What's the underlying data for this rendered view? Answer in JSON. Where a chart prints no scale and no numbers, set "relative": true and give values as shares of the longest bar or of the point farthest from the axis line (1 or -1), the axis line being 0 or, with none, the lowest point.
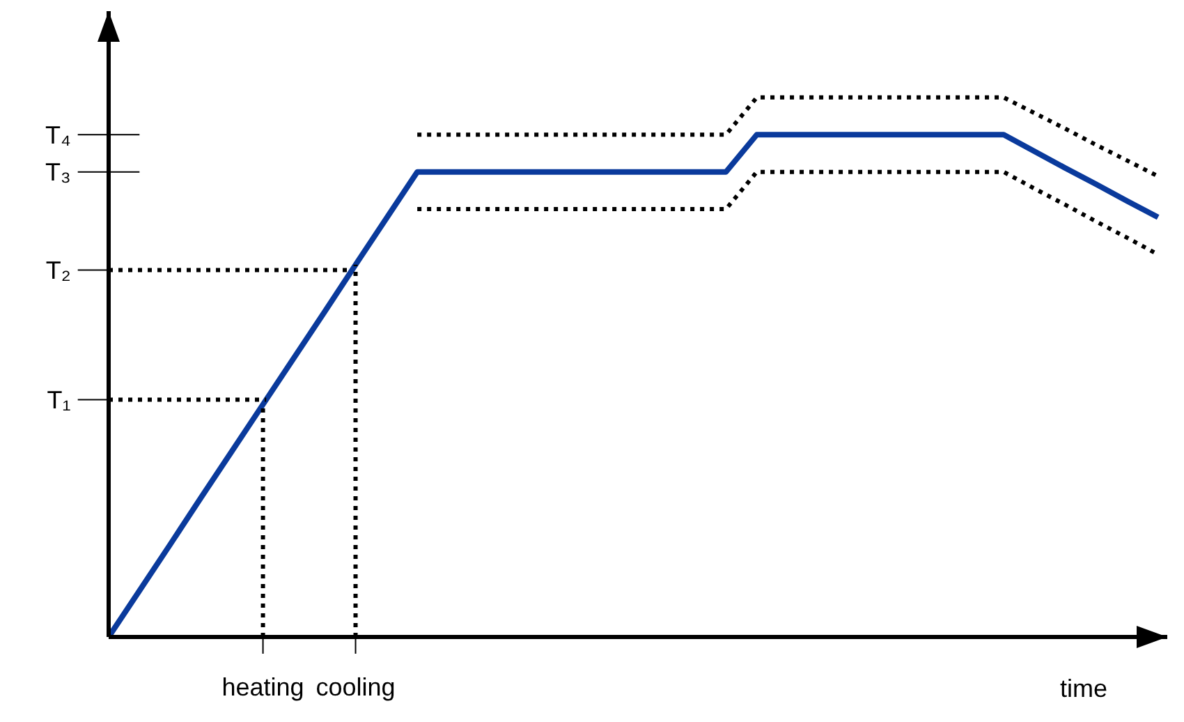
{
  "chart_data": {
    "type": "line",
    "relative": true,
    "xlabel": "time",
    "marker": "none",
    "categories": [
      null,
      null,
      null,
      null,
      null,
      "heating",
      null,
      null,
      "cooling",
      null,
      null,
      null,
      null,
      null,
      null,
      null,
      null,
      null,
      null,
      null,
      null,
      null,
      null,
      null,
      null,
      null,
      null,
      null,
      null,
      null,
      null,
      null,
      null,
      null,
      null
    ],
    "series": [
      {
        "color": "#0a3a9c",
        "line_style": "solid",
        "values": [
          0,
          0.086,
          0.172,
          0.259,
          0.345,
          0.431,
          0.517,
          0.603,
          0.69,
          0.776,
          0.862,
          0.862,
          0.862,
          0.862,
          0.862,
          0.862,
          0.862,
          0.862,
          0.862,
          0.862,
          0.862,
          0.931,
          0.931,
          0.931,
          0.931,
          0.931,
          0.931,
          0.931,
          0.931,
          0.931,
          0.9,
          0.869,
          0.839,
          0.808,
          0.778
        ]
      },
      {
        "color": "#000000",
        "line_style": "dotted",
        "values": [
          null,
          null,
          null,
          null,
          null,
          null,
          null,
          null,
          null,
          null,
          0.931,
          0.931,
          0.931,
          0.931,
          0.931,
          0.931,
          0.931,
          0.931,
          0.931,
          0.931,
          0.931,
          1,
          1,
          1,
          1,
          1,
          1,
          1,
          1,
          1,
          0.971,
          0.942,
          0.912,
          0.883,
          0.854
        ]
      },
      {
        "color": "#000000",
        "line_style": "dotted",
        "values": [
          null,
          null,
          null,
          null,
          null,
          null,
          null,
          null,
          null,
          null,
          0.793,
          0.793,
          0.793,
          0.793,
          0.793,
          0.793,
          0.793,
          0.793,
          0.793,
          0.793,
          0.793,
          0.862,
          0.862,
          0.862,
          0.862,
          0.862,
          0.862,
          0.862,
          0.862,
          0.862,
          0.831,
          0.801,
          0.77,
          0.74,
          0.709
        ]
      }
    ],
    "ref_lines": [
      {
        "axis": "y",
        "value": 0.44,
        "label": "T₁",
        "line_style": "dotted",
        "color": "#000000"
      },
      {
        "axis": "y",
        "value": 0.68,
        "label": "T₂",
        "line_style": "dotted",
        "color": "#000000"
      },
      {
        "axis": "y",
        "value": 0.862,
        "label": "T₃",
        "line_style": "solid",
        "color": "#000000"
      },
      {
        "axis": "y",
        "value": 0.931,
        "label": "T₄",
        "line_style": "solid",
        "color": "#000000"
      },
      {
        "axis": "x",
        "value": "heating",
        "line_style": "dotted",
        "color": "#000000"
      },
      {
        "axis": "x",
        "value": "cooling",
        "line_style": "dotted",
        "color": "#000000"
      }
    ]
  }
}
